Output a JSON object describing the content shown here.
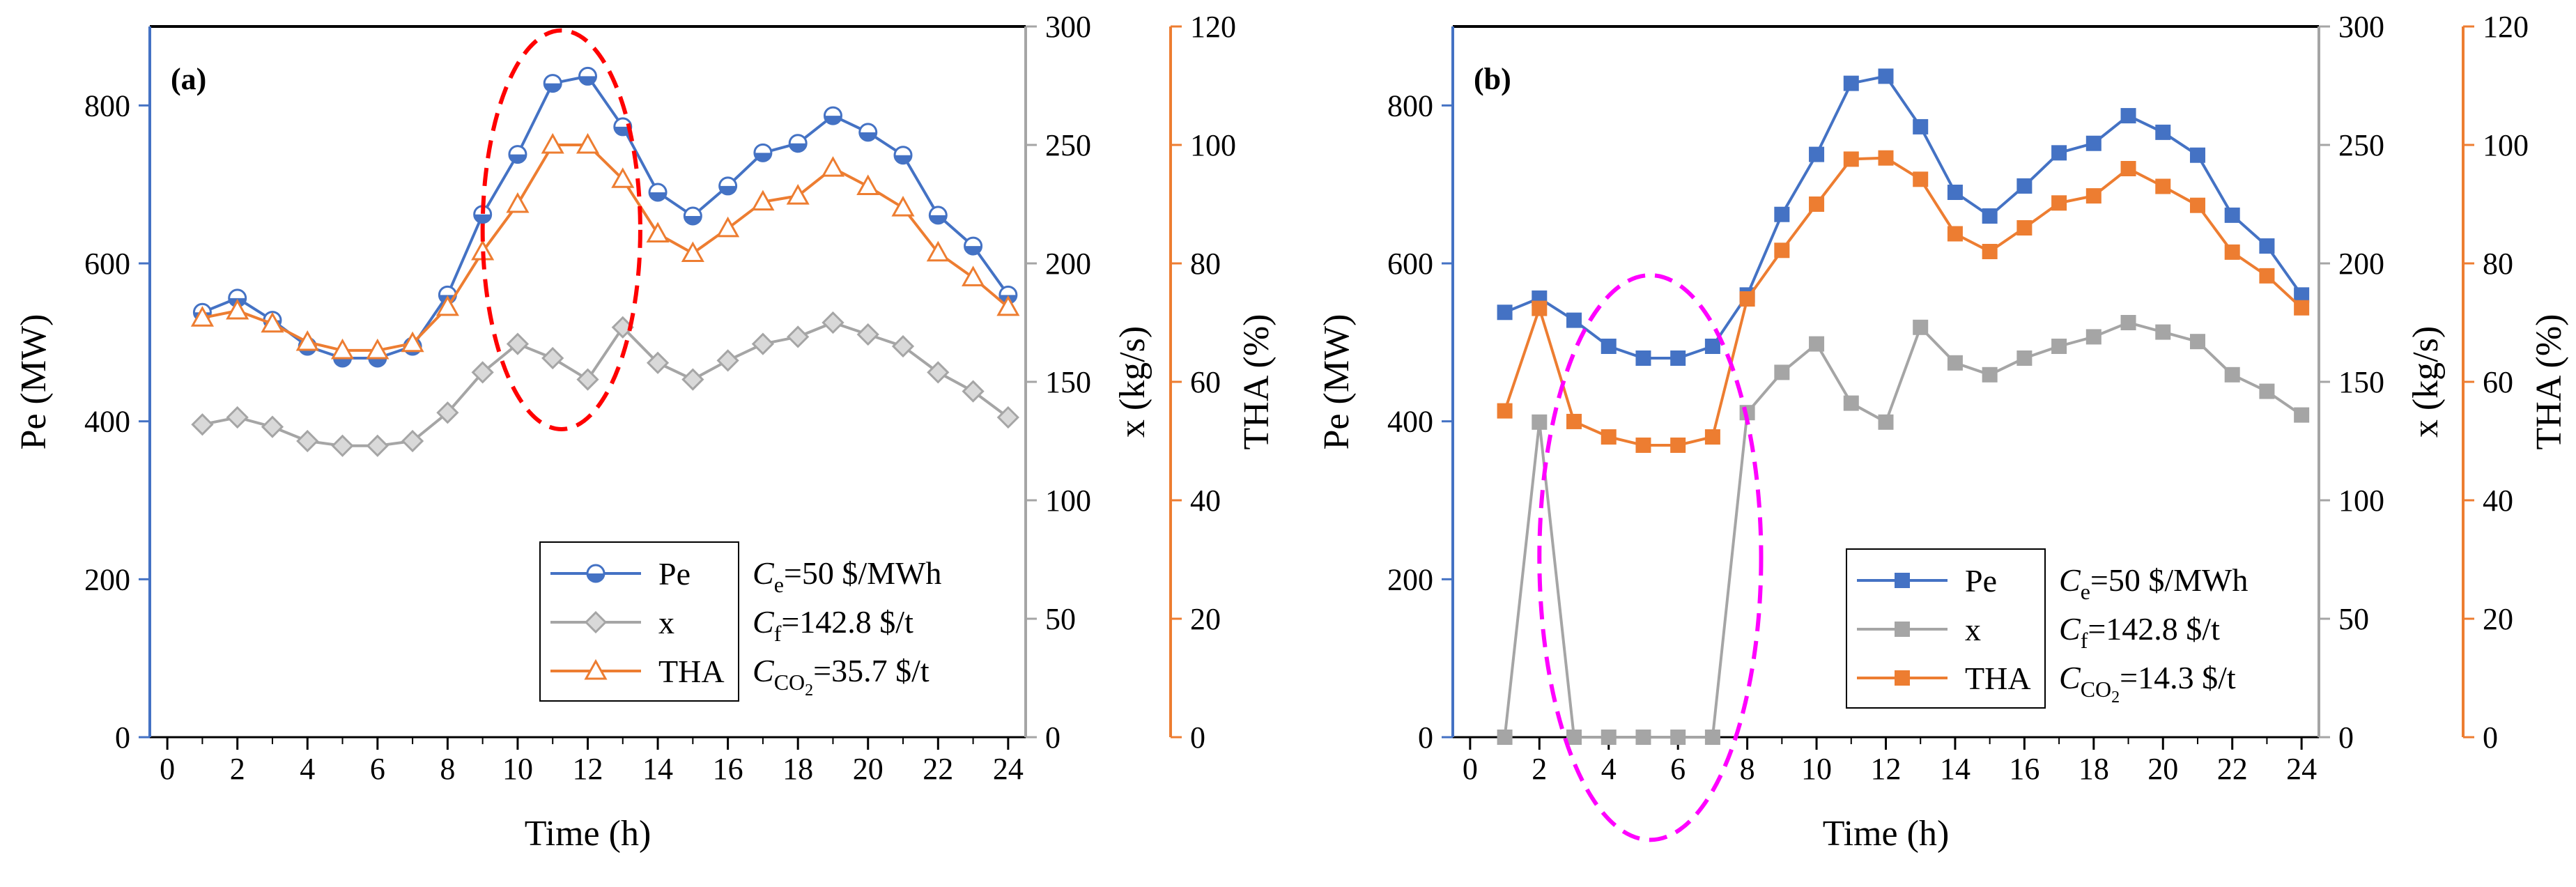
{
  "colors": {
    "pe": "#4472C4",
    "x": "#A5A5A5",
    "tha": "#ED7D31",
    "axis_left": "#4472C4",
    "axis_x": "#A5A5A5",
    "axis_tha": "#ED7D31",
    "ellipse_a": "#FF0000",
    "ellipse_b": "#FF00FF",
    "frame": "#000000"
  },
  "chart_data": [
    {
      "panel_label": "(a)",
      "type": "line",
      "xlabel": "Time (h)",
      "ylabel_left": "Pe (MW)",
      "ylabel_right1": "x (kg/s)",
      "ylabel_right2": "THA (%)",
      "xlim": [
        -0.5,
        24.5
      ],
      "ylim_left": [
        0,
        900
      ],
      "ylim_right1": [
        0,
        300
      ],
      "ylim_right2": [
        0,
        120
      ],
      "xticks": [
        0,
        2,
        4,
        6,
        8,
        10,
        12,
        14,
        16,
        18,
        20,
        22,
        24
      ],
      "yticks_left": [
        0,
        200,
        400,
        600,
        800
      ],
      "yticks_right1": [
        0,
        50,
        100,
        150,
        200,
        250,
        300
      ],
      "yticks_right2": [
        0,
        20,
        40,
        60,
        80,
        100,
        120
      ],
      "x": [
        1,
        2,
        3,
        4,
        5,
        6,
        7,
        8,
        9,
        10,
        11,
        12,
        13,
        14,
        15,
        16,
        17,
        18,
        19,
        20,
        21,
        22,
        23,
        24
      ],
      "series": [
        {
          "name": "Pe",
          "axis": "left",
          "marker": "half-circle",
          "values": [
            538,
            556,
            528,
            495,
            480,
            480,
            495,
            560,
            662,
            738,
            828,
            837,
            773,
            690,
            660,
            698,
            740,
            752,
            787,
            766,
            737,
            661,
            622,
            560
          ]
        },
        {
          "name": "x",
          "axis": "right1",
          "marker": "diamond",
          "values": [
            132,
            135,
            131,
            125,
            123,
            123,
            125,
            137,
            154,
            166,
            160,
            151,
            173,
            158,
            151,
            159,
            166,
            169,
            175,
            170,
            165,
            154,
            146,
            135
          ]
        },
        {
          "name": "THA",
          "axis": "right2",
          "marker": "triangle",
          "values": [
            70.8,
            72.0,
            69.8,
            66.7,
            65.3,
            65.3,
            66.5,
            72.6,
            82.0,
            90.0,
            100.0,
            100.0,
            94.2,
            85.0,
            81.7,
            85.9,
            90.4,
            91.4,
            96.1,
            93.0,
            89.4,
            81.8,
            77.6,
            72.6
          ]
        }
      ],
      "legend": {
        "position": "bottom-right",
        "entries": [
          "Pe",
          "x",
          "THA"
        ],
        "params": [
          {
            "symbol": "C",
            "sub": "e",
            "text": "=50 $/MWh"
          },
          {
            "symbol": "C",
            "sub": "f",
            "text": "=142.8 $/t"
          },
          {
            "symbol": "C",
            "sub": "CO",
            "sub2": "2",
            "text": "=35.7 $/t"
          }
        ]
      },
      "highlight": {
        "shape": "dashed-ellipse",
        "x_range": [
          9,
          13.5
        ],
        "y_range_left": [
          390,
          895
        ]
      }
    },
    {
      "panel_label": "(b)",
      "type": "line",
      "xlabel": "Time (h)",
      "ylabel_left": "Pe (MW)",
      "ylabel_right1": "x (kg/s)",
      "ylabel_right2": "THA (%)",
      "xlim": [
        -0.5,
        24.5
      ],
      "ylim_left": [
        0,
        900
      ],
      "ylim_right1": [
        0,
        300
      ],
      "ylim_right2": [
        0,
        120
      ],
      "xticks": [
        0,
        2,
        4,
        6,
        8,
        10,
        12,
        14,
        16,
        18,
        20,
        22,
        24
      ],
      "yticks_left": [
        0,
        200,
        400,
        600,
        800
      ],
      "yticks_right1": [
        0,
        50,
        100,
        150,
        200,
        250,
        300
      ],
      "yticks_right2": [
        0,
        20,
        40,
        60,
        80,
        100,
        120
      ],
      "x": [
        1,
        2,
        3,
        4,
        5,
        6,
        7,
        8,
        9,
        10,
        11,
        12,
        13,
        14,
        15,
        16,
        17,
        18,
        19,
        20,
        21,
        22,
        23,
        24
      ],
      "series": [
        {
          "name": "Pe",
          "axis": "left",
          "marker": "square",
          "values": [
            538,
            556,
            528,
            495,
            480,
            480,
            495,
            560,
            662,
            738,
            828,
            837,
            773,
            690,
            660,
            698,
            740,
            752,
            787,
            766,
            737,
            661,
            622,
            560
          ]
        },
        {
          "name": "x",
          "axis": "right1",
          "marker": "square",
          "values": [
            0,
            133,
            0,
            0,
            0,
            0,
            0,
            137,
            154,
            166,
            141,
            133,
            173,
            158,
            153,
            160,
            165,
            169,
            175,
            171,
            167,
            153,
            146,
            136
          ]
        },
        {
          "name": "THA",
          "axis": "right2",
          "marker": "square",
          "values": [
            55.1,
            72.4,
            53.3,
            50.7,
            49.3,
            49.3,
            50.7,
            74.0,
            82.2,
            90.0,
            97.6,
            97.8,
            94.2,
            85.0,
            82.0,
            86.0,
            90.2,
            91.4,
            96.0,
            93.0,
            89.8,
            81.9,
            77.9,
            72.5
          ]
        }
      ],
      "legend": {
        "position": "bottom-right",
        "entries": [
          "Pe",
          "x",
          "THA"
        ],
        "params": [
          {
            "symbol": "C",
            "sub": "e",
            "text": "=50 $/MWh"
          },
          {
            "symbol": "C",
            "sub": "f",
            "text": "=142.8 $/t"
          },
          {
            "symbol": "C",
            "sub": "CO",
            "sub2": "2",
            "text": "=14.3 $/t"
          }
        ]
      },
      "highlight": {
        "shape": "dashed-ellipse",
        "x_range": [
          2,
          8.4
        ],
        "y_range_left": [
          -130,
          585
        ]
      }
    }
  ]
}
